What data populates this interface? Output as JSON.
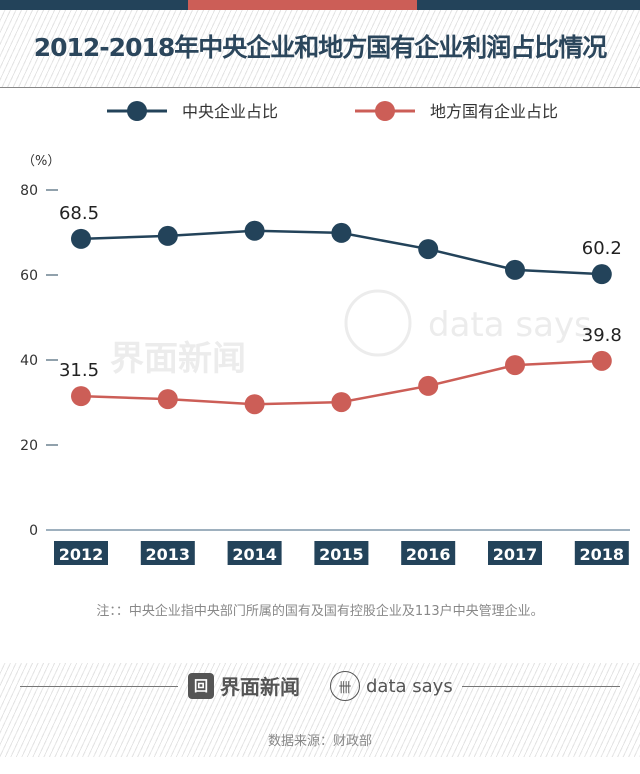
{
  "title": "2012-2018年中央企业和地方国有企业利润占比情况",
  "colors": {
    "central": "#23435a",
    "local": "#cc5e57"
  },
  "chart_data": {
    "type": "line",
    "title": "2012-2018年中央企业和地方国有企业利润占比情况",
    "ylabel": "（%）",
    "ylim": [
      0,
      80
    ],
    "yticks": [
      "0",
      "20",
      "40",
      "60",
      "80"
    ],
    "categories": [
      "2012",
      "2013",
      "2014",
      "2015",
      "2016",
      "2017",
      "2018"
    ],
    "legend_position": "top",
    "grid": false,
    "series": [
      {
        "name": "中央企业占比",
        "values": [
          68.5,
          69.2,
          70.4,
          69.9,
          66.1,
          61.2,
          60.2
        ],
        "labels": {
          "0": "68.5",
          "6": "60.2"
        }
      },
      {
        "name": "地方国有企业占比",
        "values": [
          31.5,
          30.8,
          29.6,
          30.1,
          33.9,
          38.8,
          39.8
        ],
        "labels": {
          "0": "31.5",
          "6": "39.8"
        }
      }
    ]
  },
  "note": "注：：中央企业指中央部门所属的国有及国有控股企业及113户中央管理企业。",
  "watermark": {
    "brand": "界面新闻",
    "datasays": "data says"
  },
  "footer": {
    "brand": "界面新闻",
    "datasays": "data says",
    "source": "数据来源：财政部"
  }
}
